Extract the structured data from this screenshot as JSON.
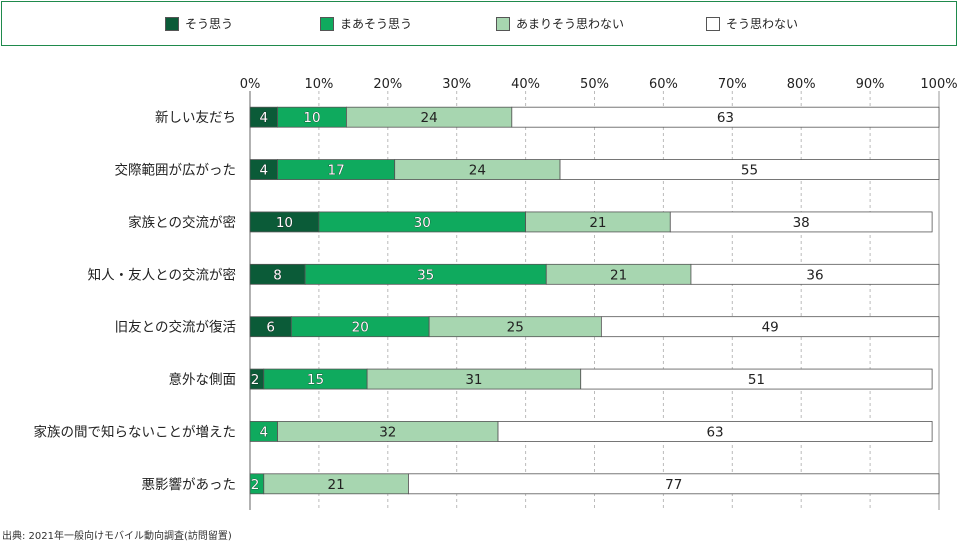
{
  "legend": {
    "items": [
      {
        "label": "そう思う",
        "color": "#0b5b38"
      },
      {
        "label": "まあそう思う",
        "color": "#0faa5e"
      },
      {
        "label": "あまりそう思わない",
        "color": "#a7d6b0"
      },
      {
        "label": "そう思わない",
        "color": "#ffffff"
      }
    ]
  },
  "chart_data": {
    "type": "bar",
    "orientation": "horizontal",
    "stacked": true,
    "percent_scale": true,
    "xlim": [
      0,
      100
    ],
    "x_ticks": [
      "0%",
      "10%",
      "20%",
      "30%",
      "40%",
      "50%",
      "60%",
      "70%",
      "80%",
      "90%",
      "100%"
    ],
    "grid": "vertical dashed",
    "legend_position": "top",
    "categories": [
      "新しい友だち",
      "交際範囲が広がった",
      "家族との交流が密",
      "知人・友人との交流が密",
      "旧友との交流が復活",
      "意外な側面",
      "家族の間で知らないことが増えた",
      "悪影響があった"
    ],
    "series": [
      {
        "name": "そう思う",
        "color": "#0b5b38",
        "values": [
          4,
          4,
          10,
          8,
          6,
          2,
          0,
          0
        ]
      },
      {
        "name": "まあそう思う",
        "color": "#0faa5e",
        "values": [
          10,
          17,
          30,
          35,
          20,
          15,
          4,
          2
        ]
      },
      {
        "name": "あまりそう思わない",
        "color": "#a7d6b0",
        "values": [
          24,
          24,
          21,
          21,
          25,
          31,
          32,
          21
        ]
      },
      {
        "name": "そう思わない",
        "color": "#ffffff",
        "values": [
          63,
          55,
          38,
          36,
          49,
          51,
          63,
          77
        ]
      }
    ]
  },
  "source": "出典: 2021年一般向けモバイル動向調査(訪問留置)"
}
